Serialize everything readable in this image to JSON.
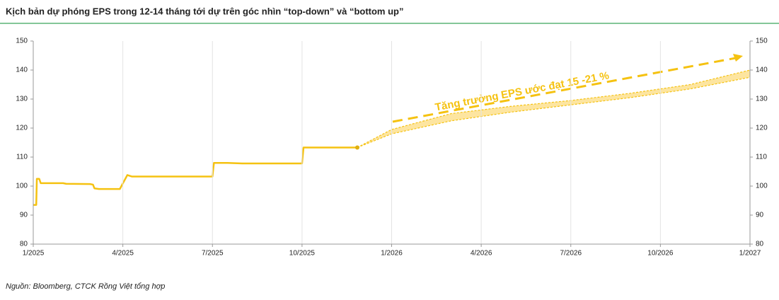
{
  "chart_data": {
    "type": "line",
    "title": "Kịch bản dự phóng EPS trong 12-14 tháng tới dự trên góc nhìn “top-down” và “bottom up”",
    "source": "Nguồn: Bloomberg, CTCK Rồng Việt tổng hợp",
    "annotation": "Tăng trưởng EPS  ước đạt 15 -21 %",
    "xlim": [
      0,
      24
    ],
    "xticks": [
      {
        "value": 0,
        "label": "1/2025"
      },
      {
        "value": 3,
        "label": "4/2025"
      },
      {
        "value": 6,
        "label": "7/2025"
      },
      {
        "value": 9,
        "label": "10/2025"
      },
      {
        "value": 12,
        "label": "1/2026"
      },
      {
        "value": 15,
        "label": "4/2026"
      },
      {
        "value": 18,
        "label": "7/2026"
      },
      {
        "value": 21,
        "label": "10/2026"
      },
      {
        "value": 24,
        "label": "1/2027"
      }
    ],
    "ylim": [
      80,
      150
    ],
    "yticks": [
      80,
      90,
      100,
      110,
      120,
      130,
      140,
      150
    ],
    "y2lim": [
      80,
      150
    ],
    "y2ticks": [
      80,
      90,
      100,
      110,
      120,
      130,
      140,
      150
    ],
    "grid": "x",
    "fill_between": [
      1,
      2
    ],
    "fill_color": "#fde08f",
    "series": [
      {
        "color": "#f5c211",
        "style": "solid",
        "x": [
          0,
          0.1,
          0.12,
          0.2,
          0.25,
          1,
          1.1,
          1.9,
          2,
          2.05,
          2.2,
          2.9,
          3.15,
          3.3,
          6,
          6.05,
          6.5,
          7,
          9,
          9.05,
          10.85
        ],
        "values": [
          93.5,
          93.5,
          102.5,
          102.5,
          101,
          101,
          100.8,
          100.7,
          100.5,
          99.2,
          99,
          99,
          103.8,
          103.3,
          103.3,
          108,
          108,
          107.8,
          107.8,
          113.3,
          113.3
        ]
      },
      {
        "color": "#f5c211",
        "style": "dashed",
        "x": [
          10.85,
          12,
          14,
          16,
          18,
          20,
          22,
          24
        ],
        "values": [
          113.3,
          119.5,
          125,
          127.5,
          129.5,
          132,
          135,
          140
        ]
      },
      {
        "color": "#f5c211",
        "style": "dashed",
        "x": [
          10.85,
          12,
          14,
          16,
          18,
          20,
          22,
          24
        ],
        "values": [
          113.3,
          118,
          122.5,
          125.5,
          128,
          130.5,
          133.5,
          137.5
        ]
      }
    ]
  }
}
